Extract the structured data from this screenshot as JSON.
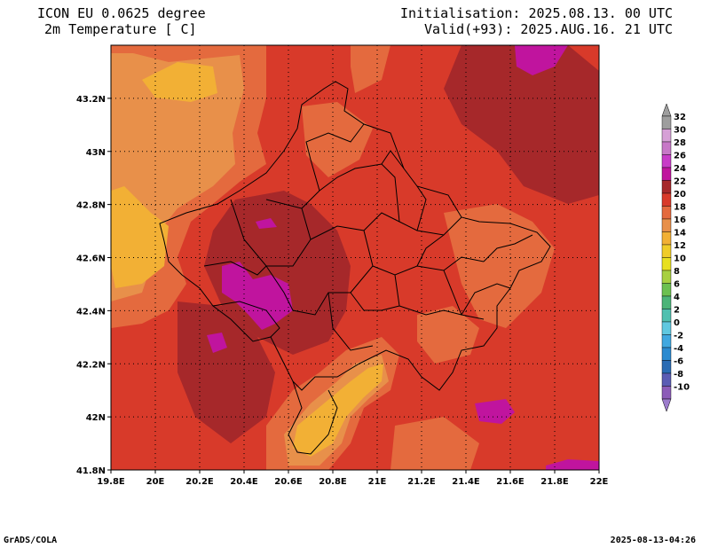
{
  "header": {
    "title_line1": "ICON EU 0.0625 degree",
    "title_line2": "2m Temperature [ C]",
    "init_line": "Initialisation: 2025.08.13. 00 UTC",
    "valid_line": "Valid(+93): 2025.AUG.16. 21 UTC"
  },
  "footer": {
    "left": "GrADS/COLA",
    "right": "2025-08-13-04:26"
  },
  "map": {
    "lon_range": [
      19.8,
      22.0
    ],
    "lat_range": [
      41.8,
      43.4
    ],
    "lon_ticks": [
      {
        "value": 19.8,
        "label": "19.8E"
      },
      {
        "value": 20.0,
        "label": "20E"
      },
      {
        "value": 20.2,
        "label": "20.2E"
      },
      {
        "value": 20.4,
        "label": "20.4E"
      },
      {
        "value": 20.6,
        "label": "20.6E"
      },
      {
        "value": 20.8,
        "label": "20.8E"
      },
      {
        "value": 21.0,
        "label": "21E"
      },
      {
        "value": 21.2,
        "label": "21.2E"
      },
      {
        "value": 21.4,
        "label": "21.4E"
      },
      {
        "value": 21.6,
        "label": "21.6E"
      },
      {
        "value": 21.8,
        "label": "21.8E"
      },
      {
        "value": 22.0,
        "label": "22E"
      }
    ],
    "lat_ticks": [
      {
        "value": 41.8,
        "label": "41.8N"
      },
      {
        "value": 42.0,
        "label": "42N"
      },
      {
        "value": 42.2,
        "label": "42.2N"
      },
      {
        "value": 42.4,
        "label": "42.4N"
      },
      {
        "value": 42.6,
        "label": "42.6N"
      },
      {
        "value": 42.8,
        "label": "42.8N"
      },
      {
        "value": 43.0,
        "label": "43N"
      },
      {
        "value": 43.2,
        "label": "43.2N"
      }
    ],
    "grid": "dotted",
    "background_color": "#c8342a"
  },
  "colorbar": {
    "levels": [
      {
        "label": "32",
        "color": "#9e9e9e"
      },
      {
        "label": "30",
        "color": "#d6a0d6"
      },
      {
        "label": "28",
        "color": "#c778c7"
      },
      {
        "label": "26",
        "color": "#c83cc8"
      },
      {
        "label": "24",
        "color": "#c0149e"
      },
      {
        "label": "22",
        "color": "#a6282a"
      },
      {
        "label": "20",
        "color": "#d83a2a"
      },
      {
        "label": "18",
        "color": "#e46a3e"
      },
      {
        "label": "16",
        "color": "#e8904a"
      },
      {
        "label": "14",
        "color": "#f2b035"
      },
      {
        "label": "12",
        "color": "#f0cc28"
      },
      {
        "label": "10",
        "color": "#e8e020"
      },
      {
        "label": "8",
        "color": "#a8d040"
      },
      {
        "label": "6",
        "color": "#6cc050"
      },
      {
        "label": "4",
        "color": "#4cb478"
      },
      {
        "label": "2",
        "color": "#50c0b0"
      },
      {
        "label": "0",
        "color": "#60c8e0"
      },
      {
        "label": "-2",
        "color": "#40a8e0"
      },
      {
        "label": "-4",
        "color": "#2a8ad0"
      },
      {
        "label": "-6",
        "color": "#2a6cb4"
      },
      {
        "label": "-8",
        "color": "#5a5cb4"
      },
      {
        "label": "-10",
        "color": "#8c5cb8"
      }
    ],
    "top_arrow_color": "#9e9e9e",
    "bottom_arrow_color": "#9c7ccc"
  }
}
